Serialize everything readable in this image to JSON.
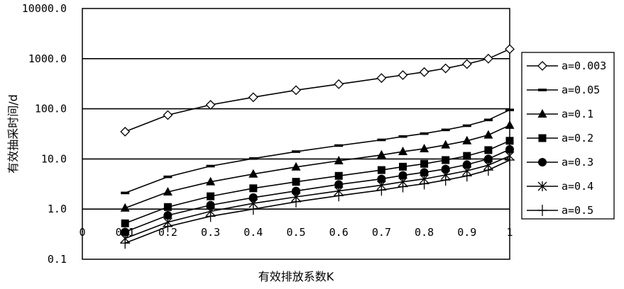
{
  "chart_data": {
    "type": "line",
    "xlabel": "有效排放系数K",
    "ylabel": "有效抽采时间/d",
    "x_scale": "linear",
    "y_scale": "log",
    "xlim": [
      0,
      1
    ],
    "ylim": [
      0.1,
      10000
    ],
    "x_ticks": [
      "0",
      "0.1",
      "0.2",
      "0.3",
      "0.4",
      "0.5",
      "0.6",
      "0.7",
      "0.8",
      "0.9",
      "1"
    ],
    "y_ticks": [
      "0.1",
      "1.0",
      "10.0",
      "100.0",
      "1000.0",
      "10000.0"
    ],
    "grid": "horizontal major lines",
    "legend_position": "right",
    "x": [
      0.1,
      0.2,
      0.3,
      0.4,
      0.5,
      0.6,
      0.7,
      0.75,
      0.8,
      0.85,
      0.9,
      0.95,
      1.0
    ],
    "series": [
      {
        "name": "a=0.003",
        "marker": "diamond-open",
        "values": [
          35,
          75,
          120,
          170,
          235,
          310,
          410,
          470,
          540,
          640,
          780,
          1000,
          1550
        ]
      },
      {
        "name": "a=0.05",
        "marker": "dash",
        "values": [
          2.1,
          4.4,
          7.2,
          10.2,
          14,
          18.5,
          24,
          28,
          32,
          38,
          46,
          60,
          95
        ]
      },
      {
        "name": "a=0.1",
        "marker": "triangle",
        "values": [
          1.05,
          2.2,
          3.5,
          5.0,
          6.9,
          9.2,
          12,
          14,
          16,
          19,
          23,
          30,
          47
        ]
      },
      {
        "name": "a=0.2",
        "marker": "square",
        "values": [
          0.52,
          1.1,
          1.8,
          2.6,
          3.5,
          4.6,
          6.0,
          7.0,
          8.0,
          9.5,
          11.5,
          15,
          23
        ]
      },
      {
        "name": "a=0.3",
        "marker": "circle",
        "values": [
          0.35,
          0.75,
          1.2,
          1.7,
          2.3,
          3.1,
          4.0,
          4.7,
          5.4,
          6.3,
          7.7,
          10,
          15.5
        ]
      },
      {
        "name": "a=0.4",
        "marker": "star",
        "values": [
          0.26,
          0.55,
          0.9,
          1.3,
          1.75,
          2.3,
          3.0,
          3.5,
          4.0,
          4.8,
          5.8,
          7.5,
          11.5
        ]
      },
      {
        "name": "a=0.5",
        "marker": "plus",
        "values": [
          0.21,
          0.45,
          0.72,
          1.0,
          1.4,
          1.85,
          2.4,
          2.8,
          3.2,
          3.8,
          4.6,
          6.0,
          9.5
        ]
      }
    ]
  }
}
